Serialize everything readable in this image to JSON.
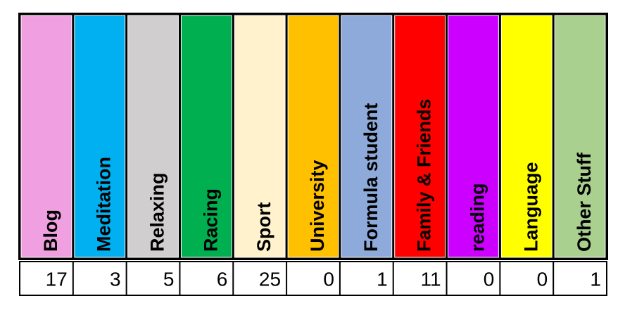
{
  "table": {
    "headers": [
      "Blog",
      "Meditation",
      "Relaxing",
      "Racing",
      "Sport",
      "University",
      "Formula student",
      "Family & Friends",
      "reading",
      "Language",
      "Other Stuff"
    ],
    "values": [
      17,
      3,
      5,
      6,
      25,
      0,
      1,
      11,
      0,
      0,
      1
    ],
    "colors": [
      "#f0a0e0",
      "#00b0f0",
      "#d0cece",
      "#00b050",
      "#fff2cc",
      "#ffc000",
      "#8eaadb",
      "#ff0000",
      "#cc00ff",
      "#ffff00",
      "#a9d08e"
    ]
  }
}
